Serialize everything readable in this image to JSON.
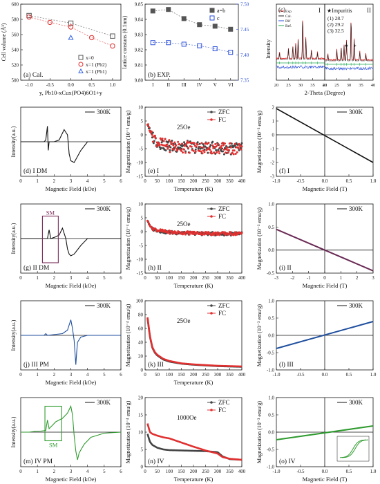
{
  "figure": {
    "background": "#ffffff",
    "axis_color": "#111111"
  },
  "chart_data": [
    {
      "id": "a",
      "type": "scatter",
      "panel_label": "(a) Cal.",
      "xlabel": "y, Pb10-xCux(PO4)6O1+y",
      "ylabel": "Cell volume (Å³)",
      "xlim": [
        -1.2,
        1.2
      ],
      "ylim": [
        500,
        600
      ],
      "xticks": [
        -1.0,
        -0.5,
        0.0,
        0.5,
        1.0
      ],
      "yticks": [
        500,
        520,
        540,
        560,
        580,
        600
      ],
      "legend_position": "lower-right",
      "series": [
        {
          "name": "x=0",
          "marker": "square",
          "color": "#555555",
          "connect": true,
          "points": [
            [
              -1.0,
              585
            ],
            [
              0.0,
              575
            ],
            [
              1.0,
              558
            ]
          ]
        },
        {
          "name": "x=1 (Pb2)",
          "marker": "circle",
          "color": "#e03030",
          "connect": true,
          "points": [
            [
              -1.0,
              583
            ],
            [
              -0.5,
              576
            ],
            [
              0.0,
              570
            ],
            [
              0.5,
              556
            ],
            [
              1.0,
              545
            ]
          ]
        },
        {
          "name": "x=1 (Pb1)",
          "marker": "triangle",
          "color": "#3060e0",
          "connect": false,
          "points": [
            [
              0.0,
              556
            ]
          ]
        }
      ]
    },
    {
      "id": "b",
      "type": "scatter",
      "panel_label": "(b) EXP.",
      "xlabel": "",
      "ylabel": "lattice constans (0.1nm)",
      "y2label": "",
      "categories": [
        "I",
        "II",
        "III",
        "IV",
        "V",
        "VI"
      ],
      "ylim": [
        9.8,
        9.85
      ],
      "yticks": [
        9.8,
        9.81,
        9.82,
        9.83,
        9.84,
        9.85
      ],
      "y2lim": [
        7.35,
        7.5
      ],
      "y2ticks": [
        7.35,
        7.4,
        7.45,
        7.5
      ],
      "y2_color": "#2a4ed8",
      "legend_position": "top-right",
      "series": [
        {
          "name": "a=b",
          "axis": "left",
          "marker": "square-filled",
          "color": "#555555",
          "values": [
            9.8455,
            9.8465,
            9.8405,
            9.8365,
            9.8355,
            9.8335
          ]
        },
        {
          "name": "c",
          "axis": "right",
          "marker": "square-open",
          "color": "#2a4ed8",
          "values": [
            7.424,
            7.424,
            7.421,
            7.418,
            7.412,
            7.405
          ]
        }
      ]
    },
    {
      "id": "c",
      "type": "line",
      "panel_label": "(c)",
      "xlabel": "2-Theta (Degree)",
      "ylabel": "Intensity",
      "sub_labels": [
        "I",
        "II"
      ],
      "xlim": [
        20,
        40
      ],
      "xticks": [
        20,
        25,
        30,
        35,
        40
      ],
      "legend_entries": [
        {
          "name": "Exp",
          "color": "#e03030"
        },
        {
          "name": "Cal.",
          "color": "#222222"
        },
        {
          "name": "Dif",
          "color": "#2a4ed8"
        },
        {
          "name": "Ref.",
          "color": "#22aa55"
        }
      ],
      "impurities": {
        "title": "★Impuritis",
        "peaks": [
          "(1) 28.7",
          "(2) 29.2",
          "(3) 32.5"
        ]
      },
      "peak_positions": [
        21.3,
        25.0,
        26.8,
        28.0,
        29.0,
        30.9,
        32.2,
        34.5,
        37.0
      ],
      "peak_heights": [
        0.15,
        0.25,
        0.3,
        0.35,
        0.45,
        1.0,
        0.5,
        0.2,
        0.15
      ],
      "impurity_markers": [
        28.7,
        29.2,
        32.5
      ]
    },
    {
      "id": "d",
      "type": "line",
      "panel_label": "(d) I DM",
      "legend": "300K",
      "xlabel": "Magnetic Field (kOe)",
      "ylabel": "Intensity(a.u.)",
      "xlim": [
        0,
        6
      ],
      "xticks": [
        0,
        1,
        2,
        3,
        4,
        5,
        6
      ],
      "ylim": [
        -1,
        1
      ],
      "color": "#111111",
      "x": [
        0.0,
        1.4,
        1.5,
        1.6,
        1.65,
        1.7,
        2.0,
        2.3,
        2.6,
        2.8,
        2.85,
        2.9,
        3.0,
        3.2,
        3.6,
        4.0,
        6.0
      ],
      "y": [
        0.0,
        0.0,
        0.05,
        0.45,
        -0.25,
        0.0,
        0.0,
        0.05,
        0.35,
        0.2,
        -0.05,
        -0.35,
        -0.55,
        -0.6,
        -0.25,
        0.0,
        0.0
      ]
    },
    {
      "id": "e",
      "type": "scatter",
      "panel_label": "(e) I",
      "annotation": "25Oe",
      "xlabel": "Temperature (K)",
      "ylabel": "Magnetization (10⁻⁴ emu/g)",
      "xlim": [
        0,
        400
      ],
      "xticks": [
        0,
        50,
        100,
        150,
        200,
        250,
        300,
        350,
        400
      ],
      "ylim": [
        -15,
        10
      ],
      "yticks": [
        -15,
        -10,
        -5,
        0,
        5,
        10
      ],
      "noise_amplitude": 2.2,
      "series": [
        {
          "name": "ZFC",
          "color": "#444444",
          "x": [
            10,
            20,
            30,
            50,
            75,
            100,
            150,
            200,
            250,
            300,
            350,
            400
          ],
          "y": [
            4.0,
            1.5,
            -0.5,
            -2.5,
            -3.5,
            -4.0,
            -4.2,
            -4.5,
            -4.6,
            -4.8,
            -5.0,
            -5.0
          ]
        },
        {
          "name": "FC",
          "color": "#e03030",
          "x": [
            10,
            20,
            30,
            50,
            75,
            100,
            150,
            200,
            250,
            300,
            350,
            400
          ],
          "y": [
            4.0,
            1.8,
            0.0,
            -2.5,
            -3.5,
            -4.0,
            -4.3,
            -4.5,
            -4.6,
            -4.8,
            -5.0,
            -5.0
          ]
        }
      ]
    },
    {
      "id": "f",
      "type": "line",
      "panel_label": "(f) I",
      "legend": "300K",
      "xlabel": "Magnetic Field (T)",
      "ylabel": "Magnetization (10⁻³ emu/g)",
      "xlim": [
        -1.0,
        1.0
      ],
      "xticks": [
        -1.0,
        -0.5,
        0.0,
        0.5,
        1.0
      ],
      "ylim": [
        -3,
        2
      ],
      "yticks": [
        -3,
        -2,
        -1,
        0,
        1,
        2
      ],
      "color": "#111111",
      "x": [
        -1.0,
        1.0
      ],
      "y": [
        1.9,
        -2.0
      ]
    },
    {
      "id": "g",
      "type": "line",
      "panel_label": "(g) II DM",
      "legend": "300K",
      "box_label": "SM",
      "box_x": [
        1.3,
        2.25
      ],
      "box_y": [
        -0.7,
        0.65
      ],
      "xlabel": "Magnetic Field (kOe)",
      "ylabel": "Intensity(a.u.)",
      "xlim": [
        0,
        6
      ],
      "xticks": [
        0,
        1,
        2,
        3,
        4,
        5,
        6
      ],
      "ylim": [
        -1,
        1
      ],
      "color": "#111111",
      "x": [
        0.0,
        1.4,
        1.6,
        1.7,
        1.8,
        2.1,
        2.3,
        2.5,
        2.7,
        2.8,
        2.9,
        3.0,
        3.2,
        3.6,
        4.0,
        6.0
      ],
      "y": [
        0.0,
        0.0,
        0.0,
        0.25,
        0.0,
        0.05,
        0.1,
        0.3,
        0.0,
        -0.3,
        -0.45,
        -0.5,
        -0.45,
        -0.2,
        0.0,
        0.0
      ]
    },
    {
      "id": "h",
      "type": "scatter",
      "panel_label": "(h) II",
      "annotation": "25Oe",
      "xlabel": "Temperature (K)",
      "ylabel": "Magnetization (10⁻⁴ emu/g)",
      "xlim": [
        0,
        400
      ],
      "xticks": [
        0,
        50,
        100,
        150,
        200,
        250,
        300,
        350,
        400
      ],
      "ylim": [
        -15,
        10
      ],
      "yticks": [
        -15,
        -10,
        -5,
        0,
        5,
        10
      ],
      "noise_amplitude": 0.6,
      "series": [
        {
          "name": "ZFC",
          "color": "#444444",
          "x": [
            10,
            20,
            30,
            50,
            75,
            100,
            150,
            200,
            250,
            300,
            350,
            400
          ],
          "y": [
            4.0,
            2.0,
            1.0,
            0.5,
            0.0,
            -0.3,
            -0.5,
            -0.6,
            -0.7,
            -0.8,
            -0.8,
            -0.8
          ]
        },
        {
          "name": "FC",
          "color": "#e03030",
          "x": [
            10,
            20,
            30,
            50,
            75,
            100,
            150,
            200,
            250,
            300,
            350,
            400
          ],
          "y": [
            4.0,
            2.2,
            1.2,
            0.6,
            0.1,
            -0.2,
            -0.4,
            -0.5,
            -0.6,
            -0.7,
            -0.7,
            -0.7
          ]
        }
      ]
    },
    {
      "id": "i",
      "type": "line",
      "panel_label": "(i) II",
      "legend": "300K",
      "xlabel": "Magnetic Field (T)",
      "ylabel": "Magnetization (10⁻³ emu/g)",
      "xlim": [
        -3,
        3
      ],
      "xticks": [
        -3,
        -2,
        -1,
        0,
        1,
        2,
        3
      ],
      "ylim": [
        -0.5,
        1.0
      ],
      "yticks": [
        -0.5,
        0.0,
        0.5,
        1.0
      ],
      "color": "#6a2a55",
      "x": [
        -3,
        3
      ],
      "y": [
        0.45,
        -0.45
      ]
    },
    {
      "id": "j",
      "type": "line",
      "panel_label": "(j) III PM",
      "legend": "300K",
      "xlabel": "Magnetic Field (kOe)",
      "ylabel": "Intensity(a.u.)",
      "xlim": [
        0,
        6
      ],
      "xticks": [
        0,
        1,
        2,
        3,
        4,
        5,
        6
      ],
      "ylim": [
        -1,
        1
      ],
      "color": "#1f4f9e",
      "x": [
        0.0,
        1.4,
        1.5,
        1.6,
        2.5,
        2.8,
        3.0,
        3.1,
        3.2,
        3.25,
        3.3,
        3.35,
        3.4,
        3.6,
        4.0,
        6.0
      ],
      "y": [
        0.0,
        0.0,
        0.05,
        0.0,
        0.05,
        0.15,
        0.45,
        0.2,
        -0.15,
        -0.5,
        -0.85,
        -0.5,
        -0.2,
        -0.05,
        0.0,
        0.0
      ]
    },
    {
      "id": "k",
      "type": "scatter",
      "panel_label": "(k) III",
      "annotation": "25Oe",
      "xlabel": "Temperature (K)",
      "ylabel": "Magnetization (10⁻⁴ emu/g)",
      "xlim": [
        0,
        400
      ],
      "xticks": [
        0,
        50,
        100,
        150,
        200,
        250,
        300,
        350,
        400
      ],
      "ylim": [
        0,
        100
      ],
      "yticks": [
        0,
        20,
        40,
        60,
        80,
        100
      ],
      "noise_amplitude": 0,
      "series": [
        {
          "name": "ZFC",
          "color": "#444444",
          "x": [
            10,
            20,
            30,
            40,
            50,
            75,
            100,
            150,
            200,
            250,
            300,
            350,
            400
          ],
          "y": [
            75,
            48,
            32,
            25,
            21,
            15,
            12,
            9,
            7.5,
            6.5,
            5.5,
            5,
            4.5
          ]
        },
        {
          "name": "FC",
          "color": "#e03030",
          "x": [
            10,
            20,
            30,
            40,
            50,
            75,
            100,
            150,
            200,
            250,
            300,
            350,
            400
          ],
          "y": [
            76,
            49,
            33,
            26,
            22,
            16,
            13,
            9.5,
            8,
            7,
            6,
            5.5,
            5
          ]
        }
      ]
    },
    {
      "id": "l",
      "type": "line",
      "panel_label": "(l) III",
      "legend": "300K",
      "xlabel": "",
      "ylabel": "Magnetization (10⁻³ emu/g)",
      "xlim": [
        -1.0,
        1.0
      ],
      "xticks": [
        -1.0,
        -0.5,
        0.0,
        0.5,
        1.0
      ],
      "ylim": [
        -1.0,
        1.0
      ],
      "yticks": [
        -1.0,
        -0.5,
        0.0,
        0.5,
        1.0
      ],
      "color": "#1f4f9e",
      "x": [
        -1.0,
        1.0
      ],
      "y": [
        -0.38,
        0.4
      ]
    },
    {
      "id": "m",
      "type": "line",
      "panel_label": "(m) IV PM",
      "legend": "300K",
      "box_label": "SM",
      "box_x": [
        1.45,
        2.45
      ],
      "box_y": [
        -0.25,
        0.75
      ],
      "xlabel": "Magnetic Field (kOe)",
      "ylabel": "Intensity(a.u.)",
      "xlim": [
        0,
        6
      ],
      "xticks": [
        0,
        1,
        2,
        3,
        4,
        5,
        6
      ],
      "ylim": [
        -1,
        1
      ],
      "color": "#2e9a2e",
      "x": [
        0.0,
        0.5,
        0.8,
        1.2,
        1.5,
        1.6,
        1.7,
        1.9,
        2.1,
        2.3,
        2.5,
        2.8,
        3.0,
        3.1,
        3.2,
        3.3,
        3.4,
        3.5,
        3.8,
        4.2,
        5.0,
        6.0
      ],
      "y": [
        0.0,
        0.0,
        0.02,
        0.03,
        0.05,
        0.35,
        0.1,
        0.2,
        0.3,
        0.35,
        0.4,
        0.55,
        0.75,
        0.5,
        -0.1,
        -0.55,
        -0.8,
        -0.6,
        -0.35,
        -0.15,
        -0.03,
        0.0
      ]
    },
    {
      "id": "n",
      "type": "scatter",
      "panel_label": "(n) IV",
      "annotation": "1000Oe",
      "xlabel": "Temperature (K)",
      "ylabel": "Magnetization (10⁻⁴ emu/g)",
      "xlim": [
        0,
        400
      ],
      "xticks": [
        0,
        50,
        100,
        150,
        200,
        250,
        300,
        350,
        400
      ],
      "ylim": [
        0,
        20
      ],
      "yticks": [
        0,
        5,
        10,
        15,
        20
      ],
      "noise_amplitude": 0,
      "series": [
        {
          "name": "ZFC",
          "color": "#444444",
          "x": [
            10,
            20,
            30,
            50,
            75,
            100,
            150,
            200,
            250,
            300,
            320,
            350,
            400
          ],
          "y": [
            9.5,
            7.2,
            6.3,
            5.5,
            5.0,
            4.8,
            4.7,
            4.6,
            4.5,
            4.2,
            3.0,
            2.2,
            2.0
          ]
        },
        {
          "name": "FC",
          "color": "#e03030",
          "x": [
            10,
            20,
            30,
            50,
            75,
            100,
            150,
            200,
            250,
            300,
            320,
            350,
            400
          ],
          "y": [
            12.5,
            10.0,
            9.5,
            9.0,
            8.5,
            8.2,
            7.0,
            5.8,
            4.7,
            3.8,
            2.8,
            2.3,
            2.0
          ]
        }
      ]
    },
    {
      "id": "o",
      "type": "line",
      "panel_label": "(o) IV",
      "legend": "300K",
      "xlabel": "Magnetic Field (T)",
      "ylabel": "Magnetization (10⁻³ emu/g)",
      "xlim": [
        -1.0,
        1.0
      ],
      "xticks": [
        -1.0,
        -0.5,
        0.0,
        0.5,
        1.0
      ],
      "ylim": [
        -1.0,
        1.0
      ],
      "yticks": [
        -1.0,
        -0.5,
        0.0,
        0.5,
        1.0
      ],
      "color": "#2e9a2e",
      "x": [
        -1.0,
        1.0
      ],
      "y": [
        -0.22,
        0.18
      ]
    }
  ]
}
